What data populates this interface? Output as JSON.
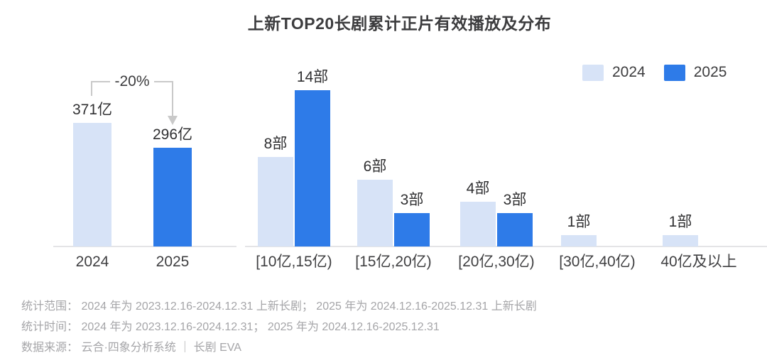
{
  "title": "上新TOP20长剧累计正片有效播放及分布",
  "colors": {
    "series_2024": "#d7e3f7",
    "series_2025": "#2e7be8",
    "axis": "#e4e4e6",
    "annotation": "#c9c9c9",
    "title_text": "#3c3c3e",
    "footnote_text": "#a5a5a8"
  },
  "legend": {
    "items": [
      {
        "label": "2024"
      },
      {
        "label": "2025"
      }
    ]
  },
  "chart_data": [
    {
      "type": "bar",
      "name": "total-effective-plays",
      "categories": [
        "2024",
        "2025"
      ],
      "values": [
        371,
        296
      ],
      "value_labels": [
        "371亿",
        "296亿"
      ],
      "unit": "亿",
      "annotation": "-20%",
      "ylim": [
        0,
        400
      ],
      "grid": false
    },
    {
      "type": "bar",
      "name": "distribution-by-play-range",
      "categories": [
        "[10亿,15亿)",
        "[15亿,20亿)",
        "[20亿,30亿)",
        "[30亿,40亿)",
        "40亿及以上"
      ],
      "series": [
        {
          "name": "2024",
          "values": [
            8,
            6,
            4,
            1,
            1
          ]
        },
        {
          "name": "2025",
          "values": [
            14,
            3,
            3,
            null,
            null
          ]
        }
      ],
      "unit": "部",
      "ylim": [
        0,
        14
      ],
      "grid": false,
      "legend_position": "top-right"
    }
  ],
  "footnotes": [
    "统计范围： 2024 年为 2023.12.16-2024.12.31 上新长剧； 2025 年为 2024.12.16-2025.12.31 上新长剧",
    "统计时间： 2024 年为 2023.12.16-2024.12.31； 2025 年为 2024.12.16-2025.12.31",
    "数据来源： 云合·四象分析系统 ｜ 长剧 EVA"
  ]
}
